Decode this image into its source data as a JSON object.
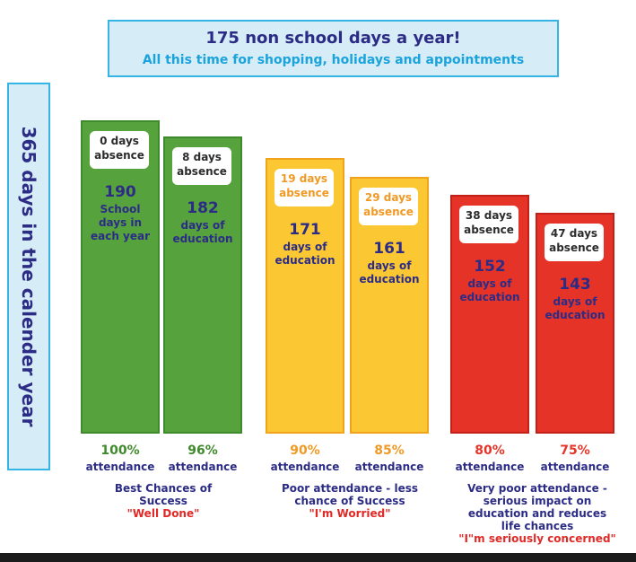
{
  "banner": {
    "line1": "175 non school days a year!",
    "line2": "All this time for shopping, holidays and appointments"
  },
  "sidebar_label": "365 days in the calender year",
  "colors": {
    "green": "#56a23c",
    "green_dark": "#3f8a2c",
    "green_text": "#2c2c86",
    "amber": "#fbc833",
    "amber_border": "#f2a31d",
    "amber_text": "#f09a25",
    "red": "#e53427",
    "red_border": "#c22018",
    "red_text": "#2c2c86",
    "blue_banner": "#d6ecf6",
    "blue_border": "#35b4e6",
    "navy": "#2c2c86"
  },
  "chart_data": {
    "type": "bar",
    "title": "175 non school days a year!",
    "subtitle": "All this time for shopping, holidays and appointments",
    "ylabel": "365 days in the calender year",
    "categories": [
      "100%",
      "96%",
      "90%",
      "85%",
      "80%",
      "75%"
    ],
    "values": [
      190,
      182,
      171,
      161,
      152,
      143
    ],
    "bars": [
      {
        "absence_days": "0 days",
        "absence_word": "absence",
        "value": "190",
        "desc1": "School",
        "desc2": "days in",
        "desc3": "each year",
        "pct": "100%",
        "att": "attendance",
        "group": 0
      },
      {
        "absence_days": "8 days",
        "absence_word": "absence",
        "value": "182",
        "desc1": "days of",
        "desc2": "education",
        "desc3": "",
        "pct": "96%",
        "att": "attendance",
        "group": 0
      },
      {
        "absence_days": "19 days",
        "absence_word": "absence",
        "value": "171",
        "desc1": "days of",
        "desc2": "education",
        "desc3": "",
        "pct": "90%",
        "att": "attendance",
        "group": 1
      },
      {
        "absence_days": "29 days",
        "absence_word": "absence",
        "value": "161",
        "desc1": "days of",
        "desc2": "education",
        "desc3": "",
        "pct": "85%",
        "att": "attendance",
        "group": 1
      },
      {
        "absence_days": "38 days",
        "absence_word": "absence",
        "value": "152",
        "desc1": "days of",
        "desc2": "education",
        "desc3": "",
        "pct": "80%",
        "att": "attendance",
        "group": 2
      },
      {
        "absence_days": "47 days",
        "absence_word": "absence",
        "value": "143",
        "desc1": "days of",
        "desc2": "education",
        "desc3": "",
        "pct": "75%",
        "att": "attendance",
        "group": 2
      }
    ],
    "groups": [
      {
        "line1": "Best Chances of",
        "line2": "Success",
        "line3": "",
        "line4": "",
        "quote": "\"Well Done\""
      },
      {
        "line1": "Poor attendance - less",
        "line2": "chance of Success",
        "line3": "",
        "line4": "",
        "quote": "\"I'm Worried\""
      },
      {
        "line1": "Very poor attendance -",
        "line2": "serious impact on",
        "line3": "education and reduces",
        "line4": "life chances",
        "quote": "\"I\"m seriously concerned\""
      }
    ]
  }
}
